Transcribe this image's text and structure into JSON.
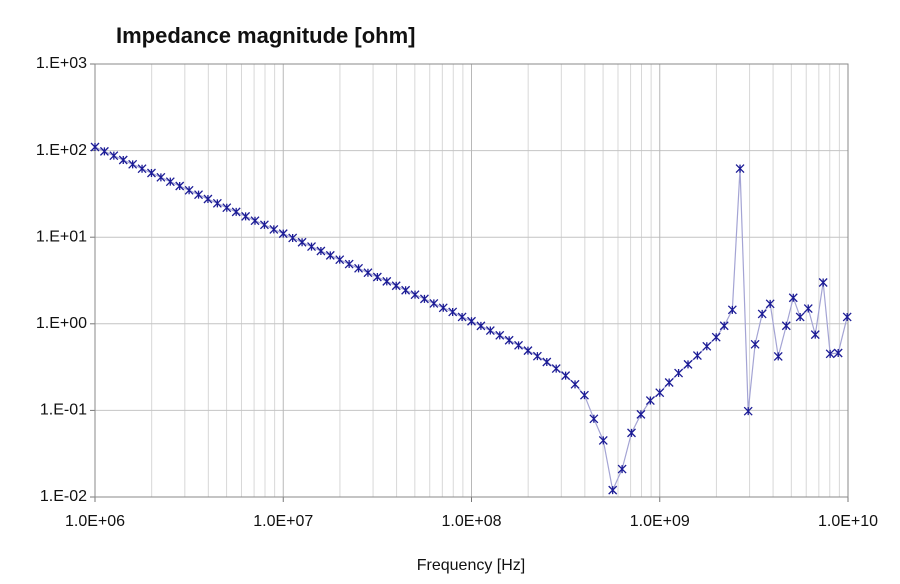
{
  "chart_data": {
    "type": "line",
    "title": "Impedance magnitude [ohm]",
    "x_label": "Frequency [Hz]",
    "log_x": true,
    "log_y": true,
    "grid": true,
    "minor_grid_x": true,
    "color": "#1c1c96",
    "line_color": "#a4a4d4",
    "marker": "x",
    "xlim": [
      1000000.0,
      10000000000.0
    ],
    "ylim": [
      0.01,
      1000
    ],
    "xticks": [
      {
        "value": 1000000.0,
        "label": "1.0E+06"
      },
      {
        "value": 10000000.0,
        "label": "1.0E+07"
      },
      {
        "value": 100000000.0,
        "label": "1.0E+08"
      },
      {
        "value": 1000000000.0,
        "label": "1.0E+09"
      },
      {
        "value": 10000000000.0,
        "label": "1.0E+10"
      }
    ],
    "yticks": [
      {
        "value": 0.01,
        "label": "1.E-02"
      },
      {
        "value": 0.1,
        "label": "1.E-01"
      },
      {
        "value": 1,
        "label": "1.E+00"
      },
      {
        "value": 10,
        "label": "1.E+01"
      },
      {
        "value": 100,
        "label": "1.E+02"
      },
      {
        "value": 1000,
        "label": "1.E+03"
      }
    ],
    "x": [
      1000000.0,
      1122000.0,
      1259000.0,
      1413000.0,
      1585000.0,
      1778000.0,
      1995000.0,
      2239000.0,
      2512000.0,
      2818000.0,
      3162000.0,
      3548000.0,
      3981000.0,
      4467000.0,
      5012000.0,
      5623000.0,
      6310000.0,
      7079000.0,
      7943000.0,
      8913000.0,
      10000000.0,
      11220000.0,
      12590000.0,
      14130000.0,
      15850000.0,
      17780000.0,
      19950000.0,
      22390000.0,
      25120000.0,
      28180000.0,
      31620000.0,
      35480000.0,
      39810000.0,
      44670000.0,
      50120000.0,
      56230000.0,
      63100000.0,
      70790000.0,
      79430000.0,
      89130000.0,
      100000000.0,
      112200000.0,
      125900000.0,
      141300000.0,
      158500000.0,
      177800000.0,
      199500000.0,
      223900000.0,
      251200000.0,
      281800000.0,
      316200000.0,
      354800000.0,
      398100000.0,
      446700000.0,
      501200000.0,
      562300000.0,
      631000000.0,
      707900000.0,
      794300000.0,
      891300000.0,
      1000000000.0,
      1122000000.0,
      1259000000.0,
      1413000000.0,
      1585000000.0,
      1778000000.0,
      1995000000.0,
      2200000000.0,
      2430000000.0,
      2670000000.0,
      2950000000.0,
      3210000000.0,
      3500000000.0,
      3860000000.0,
      4260000000.0,
      4700000000.0,
      5120000000.0,
      5570000000.0,
      6150000000.0,
      6700000000.0,
      7380000000.0,
      8040000000.0,
      8870000000.0,
      9900000000.0
    ],
    "values": [
      110,
      98,
      87.4,
      77.9,
      69.4,
      61.8,
      55.1,
      49.1,
      43.8,
      39,
      34.8,
      31,
      27.6,
      24.6,
      21.9,
      19.6,
      17.4,
      15.5,
      13.9,
      12.3,
      11,
      9.8,
      8.74,
      7.79,
      6.93,
      6.17,
      5.5,
      4.9,
      4.37,
      3.89,
      3.47,
      3.09,
      2.75,
      2.44,
      2.17,
      1.94,
      1.72,
      1.53,
      1.37,
      1.2,
      1.07,
      0.946,
      0.836,
      0.736,
      0.646,
      0.564,
      0.49,
      0.423,
      0.362,
      0.304,
      0.252,
      0.2,
      0.15,
      0.08,
      0.045,
      0.012,
      0.021,
      0.055,
      0.09,
      0.13,
      0.16,
      0.21,
      0.27,
      0.34,
      0.43,
      0.55,
      0.7,
      0.95,
      1.45,
      62,
      0.098,
      0.58,
      1.3,
      1.7,
      0.42,
      0.95,
      2,
      1.2,
      1.5,
      0.75,
      3,
      0.45,
      0.46,
      1.2
    ]
  }
}
